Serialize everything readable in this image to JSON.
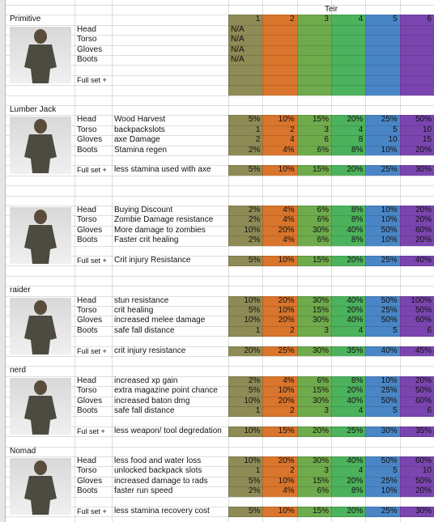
{
  "header": {
    "title": "Teir",
    "tiers": [
      "1",
      "2",
      "3",
      "4",
      "5",
      "6"
    ],
    "tier_colors": [
      "#8e8b56",
      "#d9752c",
      "#6fab4c",
      "#4cb25d",
      "#4a86c6",
      "#7b45b0"
    ]
  },
  "sections": [
    {
      "name": "Primitive",
      "rows": [
        {
          "slot": "Head",
          "values": [
            "N/A"
          ]
        },
        {
          "slot": "Torso",
          "values": [
            "N/A"
          ]
        },
        {
          "slot": "Gloves",
          "values": [
            "N/A"
          ]
        },
        {
          "slot": "Boots",
          "values": [
            "N/A"
          ]
        },
        {
          "slot": "Full set +"
        }
      ]
    },
    {
      "name": "Lumber Jack",
      "rows": [
        {
          "slot": "Head",
          "effect": "Wood Harvest",
          "values": [
            "5%",
            "10%",
            "15%",
            "20%",
            "25%",
            "50%"
          ]
        },
        {
          "slot": "Torso",
          "effect": "backpackslots",
          "values": [
            "1",
            "2",
            "3",
            "4",
            "5",
            "10"
          ]
        },
        {
          "slot": "Gloves",
          "effect": "axe Damage",
          "values": [
            "2",
            "4",
            "6",
            "8",
            "10",
            "15"
          ]
        },
        {
          "slot": "Boots",
          "effect": "Stamina regen",
          "values": [
            "2%",
            "4%",
            "6%",
            "8%",
            "10%",
            "20%"
          ]
        },
        {
          "slot": "Full set +",
          "effect": "less stamina used with axe",
          "values": [
            "5%",
            "10%",
            "15%",
            "20%",
            "25%",
            "30%"
          ]
        }
      ]
    },
    {
      "rows": [
        {
          "slot": "Head",
          "effect": "Buying Discount",
          "values": [
            "2%",
            "4%",
            "6%",
            "8%",
            "10%",
            "20%"
          ]
        },
        {
          "slot": "Torso",
          "effect": "Zombie Damage resistance",
          "values": [
            "2%",
            "4%",
            "6%",
            "8%",
            "10%",
            "20%"
          ]
        },
        {
          "slot": "Gloves",
          "effect": "More damage to zombies",
          "values": [
            "10%",
            "20%",
            "30%",
            "40%",
            "50%",
            "60%"
          ]
        },
        {
          "slot": "Boots",
          "effect": "Faster crit healing",
          "values": [
            "2%",
            "4%",
            "6%",
            "8%",
            "10%",
            "20%"
          ]
        },
        {
          "slot": "Full set +",
          "effect": "Crit injury Resistance",
          "values": [
            "5%",
            "10%",
            "15%",
            "20%",
            "25%",
            "40%"
          ]
        }
      ]
    },
    {
      "name": "raider",
      "rows": [
        {
          "slot": "Head",
          "effect": "stun resistance",
          "values": [
            "10%",
            "20%",
            "30%",
            "40%",
            "50%",
            "100%"
          ]
        },
        {
          "slot": "Torso",
          "effect": "crit healing",
          "values": [
            "5%",
            "10%",
            "15%",
            "20%",
            "25%",
            "50%"
          ]
        },
        {
          "slot": "Gloves",
          "effect": "increased melee damage",
          "values": [
            "10%",
            "20%",
            "30%",
            "40%",
            "50%",
            "60%"
          ]
        },
        {
          "slot": "Boots",
          "effect": "safe fall distance",
          "values": [
            "1",
            "2",
            "3",
            "4",
            "5",
            "6"
          ]
        },
        {
          "slot": "Full set +",
          "effect": "crit injury resistance",
          "values": [
            "20%",
            "25%",
            "30%",
            "35%",
            "40%",
            "45%"
          ]
        }
      ]
    },
    {
      "name": "nerd",
      "rows": [
        {
          "slot": "Head",
          "effect": "increased xp gain",
          "values": [
            "2%",
            "4%",
            "6%",
            "8%",
            "10%",
            "20%"
          ]
        },
        {
          "slot": "Torso",
          "effect": "extra magazine point chance",
          "values": [
            "5%",
            "10%",
            "15%",
            "20%",
            "25%",
            "50%"
          ]
        },
        {
          "slot": "Gloves",
          "effect": "increased baton dmg",
          "values": [
            "10%",
            "20%",
            "30%",
            "40%",
            "50%",
            "60%"
          ]
        },
        {
          "slot": "Boots",
          "effect": "safe fall distance",
          "values": [
            "1",
            "2",
            "3",
            "4",
            "5",
            "6"
          ]
        },
        {
          "slot": "Ful set +",
          "effect": "less weapon/ tool degredation",
          "values": [
            "10%",
            "15%",
            "20%",
            "25%",
            "30%",
            "35%"
          ]
        }
      ]
    },
    {
      "name": "Nomad",
      "rows": [
        {
          "slot": "Head",
          "effect": "less food and water loss",
          "values": [
            "10%",
            "20%",
            "30%",
            "40%",
            "50%",
            "60%"
          ]
        },
        {
          "slot": "Torso",
          "effect": "unlocked backpack slots",
          "values": [
            "1",
            "2",
            "3",
            "4",
            "5",
            "10"
          ]
        },
        {
          "slot": "Gloves",
          "effect": "increased damage to rads",
          "values": [
            "5%",
            "10%",
            "15%",
            "20%",
            "25%",
            "50%"
          ]
        },
        {
          "slot": "Boots",
          "effect": "faster run speed",
          "values": [
            "2%",
            "4%",
            "6%",
            "8%",
            "10%",
            "20%"
          ]
        },
        {
          "slot": "Full set +",
          "effect": "less stamina recovery cost",
          "values": [
            "5%",
            "10%",
            "15%",
            "20%",
            "25%",
            "30%"
          ]
        }
      ]
    }
  ]
}
